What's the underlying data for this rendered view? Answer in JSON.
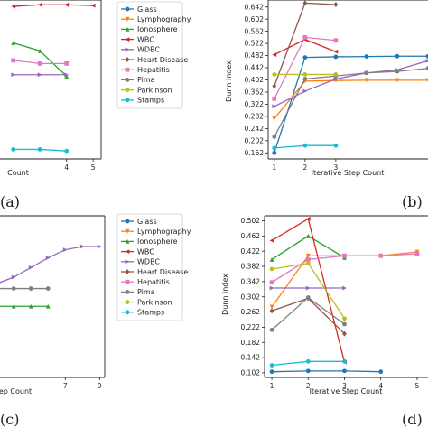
{
  "panel_labels": [
    "(a)",
    "(b)",
    "(c)",
    "(d)"
  ],
  "legend": {
    "entries": [
      {
        "name": "Glass",
        "color": "#1f77b4",
        "marker": "circle"
      },
      {
        "name": "Lymphography",
        "color": "#ff7f0e",
        "marker": "triangle-down"
      },
      {
        "name": "Ionosphere",
        "color": "#2ca02c",
        "marker": "triangle-up"
      },
      {
        "name": "WBC",
        "color": "#d62728",
        "marker": "triangle-left"
      },
      {
        "name": "WDBC",
        "color": "#9467bd",
        "marker": "triangle-right"
      },
      {
        "name": "Heart Disease",
        "color": "#8c564b",
        "marker": "diamond"
      },
      {
        "name": "Hepatitis",
        "color": "#e377c2",
        "marker": "square"
      },
      {
        "name": "Pima",
        "color": "#7f7f7f",
        "marker": "circle"
      },
      {
        "name": "Parkinson",
        "color": "#bcbd22",
        "marker": "circle"
      },
      {
        "name": "Stamps",
        "color": "#17becf",
        "marker": "circle"
      }
    ]
  },
  "chart_data": [
    {
      "panel": "(a)",
      "type": "line",
      "xlabel": "Count",
      "x_ticks": [
        "4",
        "5"
      ],
      "xlim": [
        1.5,
        5.3
      ],
      "ylim": [
        0,
        1
      ],
      "series": [
        {
          "name": "WBC",
          "x": [
            2,
            3,
            4,
            5
          ],
          "y": [
            0.96,
            0.97,
            0.97,
            0.965
          ]
        },
        {
          "name": "Ionosphere",
          "x": [
            2,
            3,
            4
          ],
          "y": [
            0.73,
            0.68,
            0.52
          ]
        },
        {
          "name": "Hepatitis",
          "x": [
            2,
            3,
            4
          ],
          "y": [
            0.62,
            0.6,
            0.6
          ]
        },
        {
          "name": "WDBC",
          "x": [
            2,
            3,
            4
          ],
          "y": [
            0.53,
            0.53,
            0.53
          ]
        },
        {
          "name": "Stamps",
          "x": [
            2,
            3,
            4
          ],
          "y": [
            0.06,
            0.06,
            0.05
          ]
        }
      ]
    },
    {
      "panel": "(b)",
      "type": "line",
      "xlabel": "Iterative Step Count",
      "ylabel": "Dunn index",
      "x_ticks": [
        "1",
        "2",
        "3"
      ],
      "y_ticks": [
        "0.162",
        "0.202",
        "0.242",
        "0.282",
        "0.322",
        "0.362",
        "0.402",
        "0.442",
        "0.482",
        "0.522",
        "0.562",
        "0.602",
        "0.642"
      ],
      "xlim": [
        0.8,
        6
      ],
      "ylim": [
        0.142,
        0.665
      ],
      "series": [
        {
          "name": "Glass",
          "x": [
            1,
            2,
            3,
            4,
            5,
            6
          ],
          "y": [
            0.162,
            0.476,
            0.478,
            0.479,
            0.48,
            0.48
          ]
        },
        {
          "name": "Lymphography",
          "x": [
            1,
            2,
            3,
            4,
            5,
            6
          ],
          "y": [
            0.275,
            0.398,
            0.4,
            0.401,
            0.401,
            0.401
          ]
        },
        {
          "name": "WBC",
          "x": [
            1,
            2,
            3
          ],
          "y": [
            0.485,
            0.535,
            0.495
          ]
        },
        {
          "name": "WDBC",
          "x": [
            1,
            2,
            3,
            4,
            5,
            6
          ],
          "y": [
            0.315,
            0.365,
            0.405,
            0.425,
            0.435,
            0.465
          ]
        },
        {
          "name": "Heart Disease",
          "x": [
            1,
            2,
            3
          ],
          "y": [
            0.382,
            0.655,
            0.65
          ]
        },
        {
          "name": "Hepatitis",
          "x": [
            1,
            2,
            3
          ],
          "y": [
            0.34,
            0.542,
            0.532
          ]
        },
        {
          "name": "Pima",
          "x": [
            1,
            2,
            3,
            4,
            5,
            6
          ],
          "y": [
            0.215,
            0.405,
            0.415,
            0.425,
            0.43,
            0.44
          ]
        },
        {
          "name": "Parkinson",
          "x": [
            1,
            2,
            3
          ],
          "y": [
            0.42,
            0.42,
            0.42
          ]
        },
        {
          "name": "Stamps",
          "x": [
            1,
            2,
            3
          ],
          "y": [
            0.178,
            0.186,
            0.186
          ]
        }
      ]
    },
    {
      "panel": "(c)",
      "type": "line",
      "xlabel": "ep Count",
      "x_ticks": [
        "7",
        "9"
      ],
      "xlim": [
        3.2,
        9.3
      ],
      "ylim": [
        0,
        1
      ],
      "series": [
        {
          "name": "WDBC",
          "x": [
            3,
            4,
            5,
            6,
            7,
            8,
            9
          ],
          "y": [
            0.58,
            0.62,
            0.68,
            0.74,
            0.79,
            0.81,
            0.81
          ]
        },
        {
          "name": "Pima",
          "x": [
            3,
            4,
            5,
            6
          ],
          "y": [
            0.55,
            0.55,
            0.55,
            0.55
          ]
        },
        {
          "name": "Ionosphere",
          "x": [
            3,
            4,
            5,
            6
          ],
          "y": [
            0.44,
            0.44,
            0.44,
            0.44
          ]
        }
      ]
    },
    {
      "panel": "(d)",
      "type": "line",
      "xlabel": "Iterative Step Count",
      "ylabel": "Dunn index",
      "x_ticks": [
        "1",
        "2",
        "3",
        "4",
        "5"
      ],
      "y_ticks": [
        "0.102",
        "0.142",
        "0.182",
        "0.222",
        "0.262",
        "0.302",
        "0.342",
        "0.382",
        "0.422",
        "0.462",
        "0.502"
      ],
      "xlim": [
        0.8,
        5.3
      ],
      "ylim": [
        0.09,
        0.515
      ],
      "series": [
        {
          "name": "Glass",
          "x": [
            1,
            2,
            3,
            4
          ],
          "y": [
            0.105,
            0.107,
            0.107,
            0.105
          ]
        },
        {
          "name": "Lymphography",
          "x": [
            1,
            2,
            3,
            4,
            5
          ],
          "y": [
            0.275,
            0.41,
            0.41,
            0.41,
            0.42
          ]
        },
        {
          "name": "Ionosphere",
          "x": [
            1,
            2,
            3
          ],
          "y": [
            0.4,
            0.462,
            0.405
          ]
        },
        {
          "name": "WBC",
          "x": [
            1,
            2,
            3
          ],
          "y": [
            0.45,
            0.507,
            0.13
          ]
        },
        {
          "name": "WDBC",
          "x": [
            1,
            2,
            3
          ],
          "y": [
            0.325,
            0.325,
            0.325
          ]
        },
        {
          "name": "Heart Disease",
          "x": [
            1,
            2,
            3
          ],
          "y": [
            0.265,
            0.298,
            0.205
          ]
        },
        {
          "name": "Hepatitis",
          "x": [
            1,
            2,
            3,
            4,
            5
          ],
          "y": [
            0.34,
            0.4,
            0.41,
            0.41,
            0.415
          ]
        },
        {
          "name": "Pima",
          "x": [
            1,
            2,
            3
          ],
          "y": [
            0.215,
            0.3,
            0.23
          ]
        },
        {
          "name": "Parkinson",
          "x": [
            1,
            2,
            3
          ],
          "y": [
            0.375,
            0.39,
            0.245
          ]
        },
        {
          "name": "Stamps",
          "x": [
            1,
            2,
            3
          ],
          "y": [
            0.122,
            0.132,
            0.132
          ]
        }
      ]
    }
  ]
}
